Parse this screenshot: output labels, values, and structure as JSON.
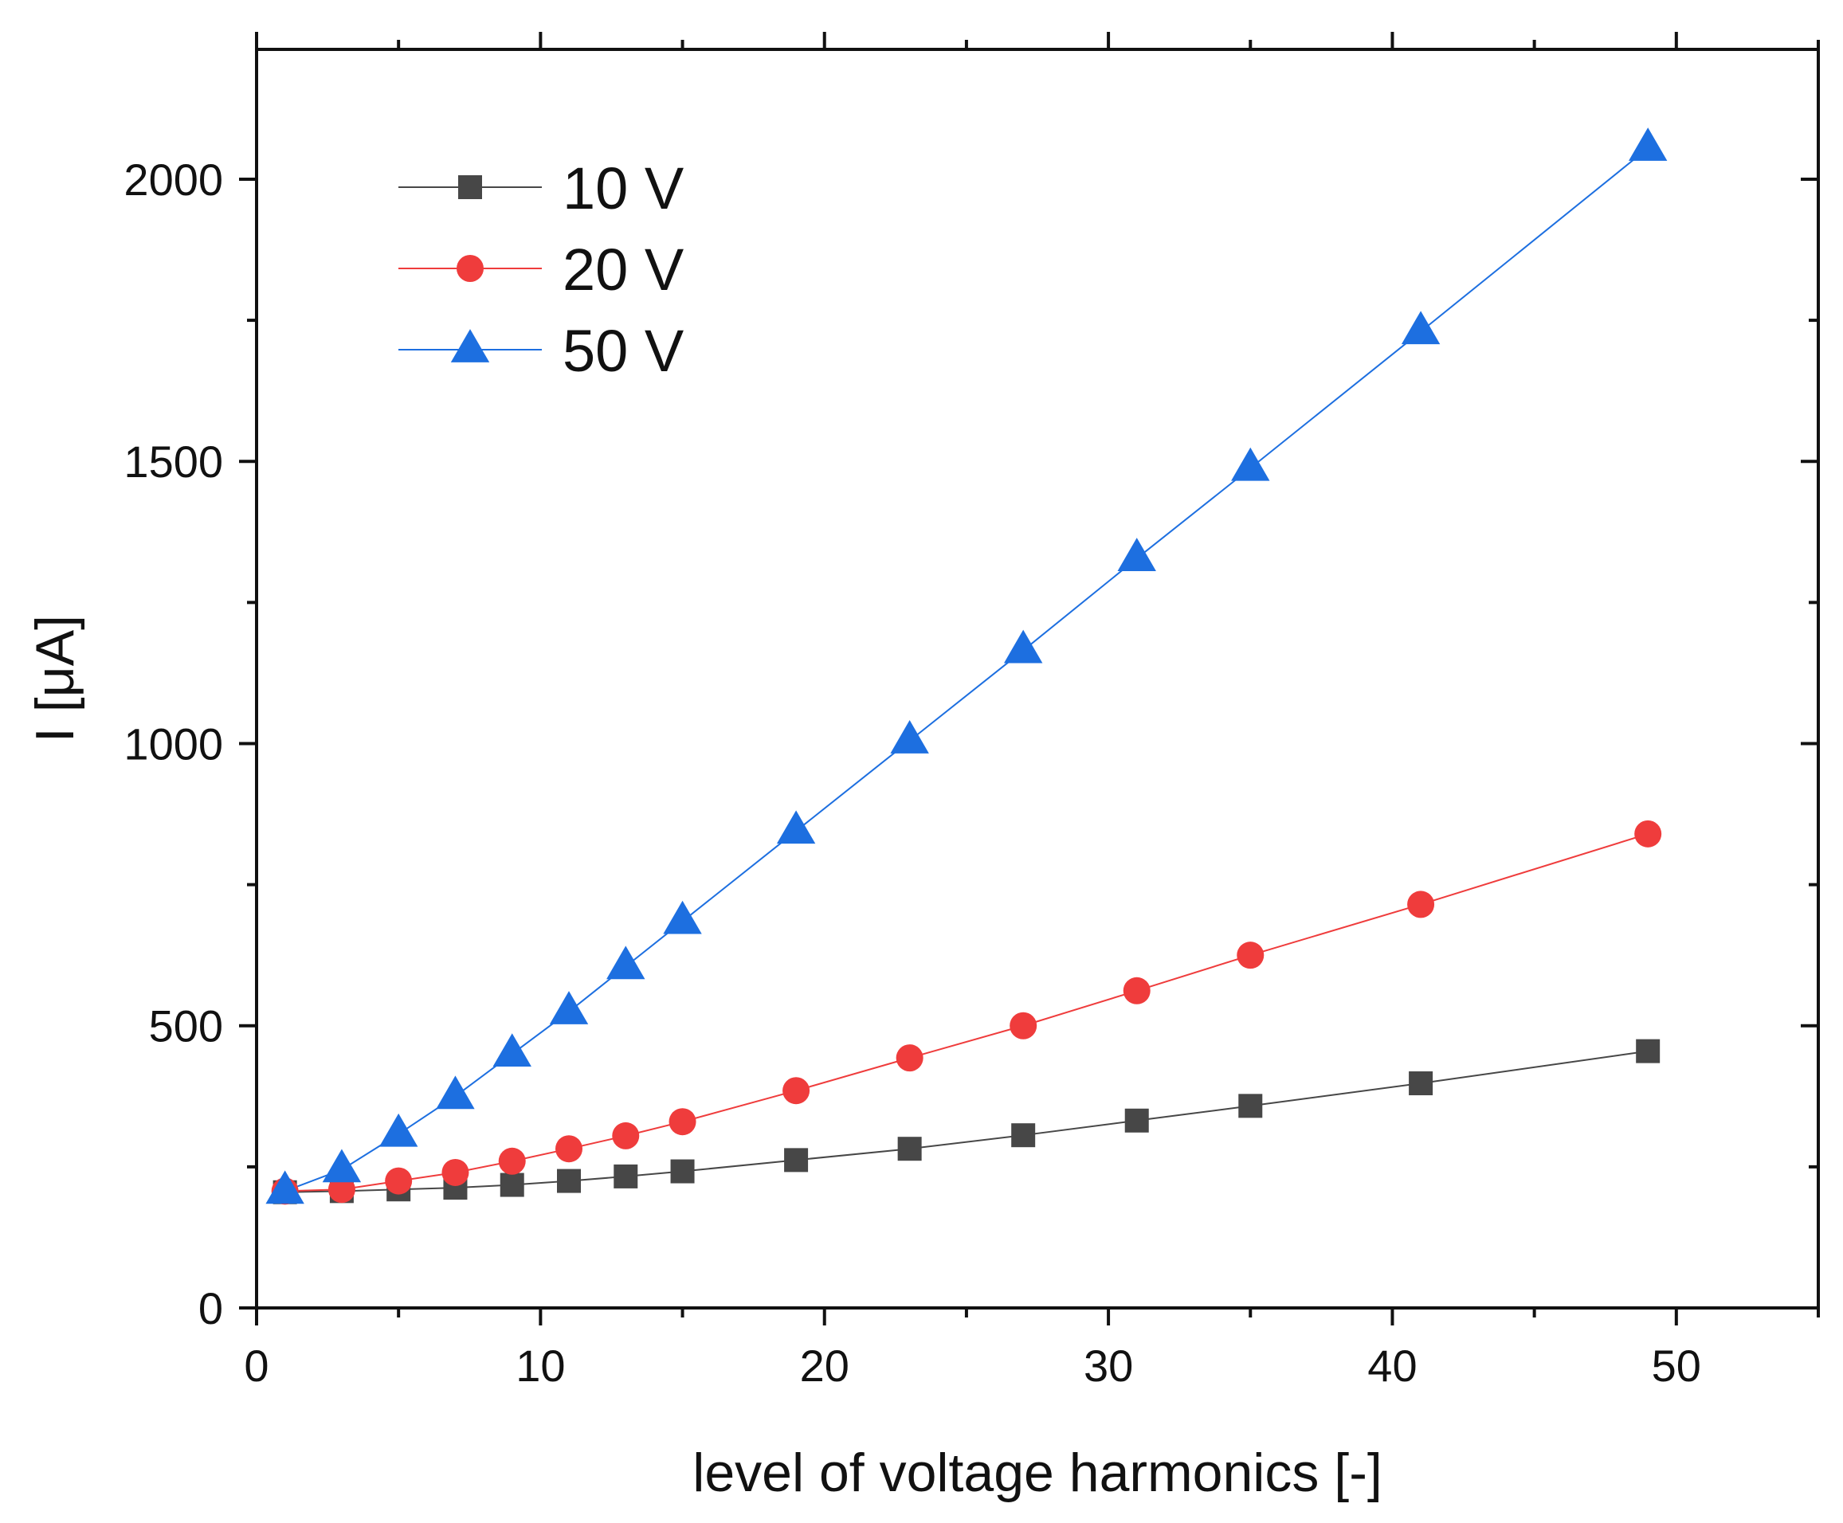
{
  "chart_data": {
    "type": "line",
    "title": "",
    "xlabel": "level of voltage harmonics [-]",
    "ylabel": "I [μA]",
    "xlim": [
      0,
      55
    ],
    "ylim": [
      0,
      2230
    ],
    "xticks": [
      0,
      10,
      20,
      30,
      40,
      50
    ],
    "xticks_minor": [
      5,
      15,
      25,
      35,
      45,
      55
    ],
    "yticks": [
      0,
      500,
      1000,
      1500,
      2000
    ],
    "yticks_minor": [
      250,
      750,
      1250,
      1750
    ],
    "grid": false,
    "legend_position": "top-left",
    "x": [
      1,
      3,
      5,
      7,
      9,
      11,
      13,
      15,
      19,
      23,
      27,
      31,
      35,
      41,
      49
    ],
    "series": [
      {
        "name": "10 V",
        "marker": "square",
        "color": "#474747",
        "values": [
          205,
          207,
          210,
          213,
          218,
          225,
          233,
          242,
          262,
          282,
          306,
          332,
          358,
          398,
          455
        ]
      },
      {
        "name": "20 V",
        "marker": "circle",
        "color": "#ef3c3c",
        "values": [
          207,
          210,
          225,
          240,
          260,
          282,
          305,
          330,
          385,
          443,
          500,
          562,
          625,
          715,
          840
        ]
      },
      {
        "name": "50 V",
        "marker": "triangle",
        "color": "#1d6fe0",
        "values": [
          207,
          245,
          308,
          375,
          450,
          525,
          605,
          685,
          845,
          1005,
          1165,
          1328,
          1488,
          1730,
          2055
        ]
      }
    ]
  }
}
